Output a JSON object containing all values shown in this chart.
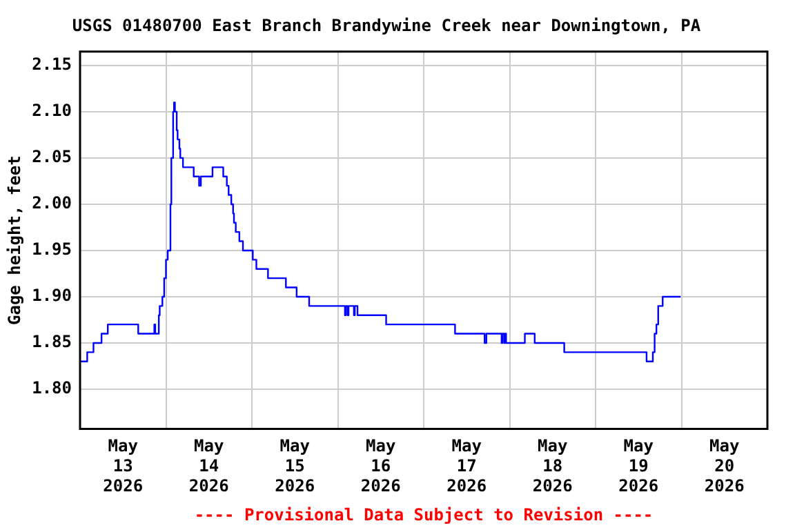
{
  "chart_data": {
    "type": "step",
    "title": "USGS 01480700 East Branch Brandywine Creek near Downingtown, PA",
    "ylabel": "Gage height, feet",
    "annotations": [
      "---- Provisional Data Subject to Revision ----"
    ],
    "x": [
      "2026-05-13T00:00",
      "2026-05-13T02:00",
      "2026-05-13T03:45",
      "2026-05-13T06:00",
      "2026-05-13T07:45",
      "2026-05-13T16:15",
      "2026-05-13T20:45",
      "2026-05-13T21:00",
      "2026-05-13T22:00",
      "2026-05-13T22:15",
      "2026-05-13T23:00",
      "2026-05-13T23:30",
      "2026-05-14T00:00",
      "2026-05-14T00:30",
      "2026-05-14T01:15",
      "2026-05-14T01:30",
      "2026-05-14T02:00",
      "2026-05-14T02:15",
      "2026-05-14T02:30",
      "2026-05-14T03:00",
      "2026-05-14T03:15",
      "2026-05-14T03:45",
      "2026-05-14T04:00",
      "2026-05-14T04:45",
      "2026-05-14T07:45",
      "2026-05-14T09:15",
      "2026-05-14T09:45",
      "2026-05-14T13:00",
      "2026-05-14T16:00",
      "2026-05-14T17:00",
      "2026-05-14T17:30",
      "2026-05-14T18:15",
      "2026-05-14T18:45",
      "2026-05-14T19:00",
      "2026-05-14T19:30",
      "2026-05-14T20:30",
      "2026-05-14T21:30",
      "2026-05-15T00:15",
      "2026-05-15T01:15",
      "2026-05-15T04:30",
      "2026-05-15T09:30",
      "2026-05-15T12:30",
      "2026-05-15T16:00",
      "2026-05-16T02:00",
      "2026-05-16T02:15",
      "2026-05-16T02:45",
      "2026-05-16T03:00",
      "2026-05-16T04:30",
      "2026-05-16T04:45",
      "2026-05-16T05:30",
      "2026-05-16T13:30",
      "2026-05-17T08:45",
      "2026-05-17T17:00",
      "2026-05-17T17:30",
      "2026-05-17T21:45",
      "2026-05-17T22:00",
      "2026-05-17T22:30",
      "2026-05-17T22:45",
      "2026-05-17T23:00",
      "2026-05-18T04:15",
      "2026-05-18T07:00",
      "2026-05-18T15:15",
      "2026-05-19T14:15",
      "2026-05-19T16:00",
      "2026-05-19T16:30",
      "2026-05-19T17:00",
      "2026-05-19T17:30",
      "2026-05-19T18:45",
      "2026-05-19T23:45"
    ],
    "series": [
      {
        "color": "#0000ff",
        "values": [
          1.83,
          1.84,
          1.85,
          1.86,
          1.87,
          1.86,
          1.87,
          1.86,
          1.88,
          1.89,
          1.9,
          1.92,
          1.94,
          1.95,
          2.0,
          2.05,
          2.1,
          2.11,
          2.1,
          2.08,
          2.07,
          2.06,
          2.05,
          2.04,
          2.03,
          2.02,
          2.03,
          2.04,
          2.03,
          2.02,
          2.01,
          2.0,
          1.99,
          1.98,
          1.97,
          1.96,
          1.95,
          1.94,
          1.93,
          1.92,
          1.91,
          1.9,
          1.89,
          1.88,
          1.89,
          1.88,
          1.89,
          1.88,
          1.89,
          1.88,
          1.87,
          1.86,
          1.85,
          1.86,
          1.85,
          1.86,
          1.85,
          1.86,
          1.85,
          1.86,
          1.85,
          1.84,
          1.83,
          1.84,
          1.86,
          1.87,
          1.89,
          1.9,
          1.9
        ]
      }
    ],
    "xlim": [
      "2026-05-13T00:00",
      "2026-05-21T00:00"
    ],
    "xticks": [
      {
        "value": "2026-05-13T00:00",
        "label": null
      },
      {
        "value": "2026-05-13T12:00",
        "label": "May 13 2026"
      },
      {
        "value": "2026-05-14T00:00",
        "label": null
      },
      {
        "value": "2026-05-14T12:00",
        "label": "May 14 2026"
      },
      {
        "value": "2026-05-15T00:00",
        "label": null
      },
      {
        "value": "2026-05-15T12:00",
        "label": "May 15 2026"
      },
      {
        "value": "2026-05-16T00:00",
        "label": null
      },
      {
        "value": "2026-05-16T12:00",
        "label": "May 16 2026"
      },
      {
        "value": "2026-05-17T00:00",
        "label": null
      },
      {
        "value": "2026-05-17T12:00",
        "label": "May 17 2026"
      },
      {
        "value": "2026-05-18T00:00",
        "label": null
      },
      {
        "value": "2026-05-18T12:00",
        "label": "May 18 2026"
      },
      {
        "value": "2026-05-19T00:00",
        "label": null
      },
      {
        "value": "2026-05-19T12:00",
        "label": "May 19 2026"
      },
      {
        "value": "2026-05-20T00:00",
        "label": null
      },
      {
        "value": "2026-05-20T12:00",
        "label": "May 20 2026"
      },
      {
        "value": "2026-05-21T00:00",
        "label": null
      }
    ],
    "ylim": [
      1.757,
      2.165
    ],
    "yticks": [
      {
        "value": 1.8,
        "label": "1.80"
      },
      {
        "value": 1.85,
        "label": "1.85"
      },
      {
        "value": 1.9,
        "label": "1.90"
      },
      {
        "value": 1.95,
        "label": "1.95"
      },
      {
        "value": 2.0,
        "label": "2.00"
      },
      {
        "value": 2.05,
        "label": "2.05"
      },
      {
        "value": 2.1,
        "label": "2.10"
      },
      {
        "value": 2.15,
        "label": "2.15"
      }
    ],
    "grid": true,
    "legend": false,
    "marker": "none",
    "line_style": "solid"
  }
}
